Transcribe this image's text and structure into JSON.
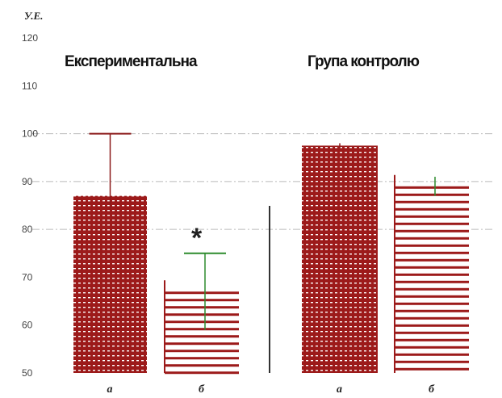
{
  "chart_data": {
    "type": "bar",
    "ylabel": "У.Е.",
    "ylim": [
      50,
      120
    ],
    "yticks": [
      "50",
      "60",
      "70",
      "80",
      "90",
      "100",
      "110",
      "120"
    ],
    "grid_ticks": [
      80,
      90,
      100
    ],
    "groups": [
      {
        "title": "Експериментальна",
        "bars": [
          {
            "category": "а",
            "value": 87,
            "error_high": 100,
            "error_low": 84,
            "error_color": "#8b1a1a",
            "pattern": "dense"
          },
          {
            "category": "б",
            "value": 67,
            "error_high": 75,
            "error_low": 59,
            "error_color": "#2e8b2e",
            "pattern": "sparse",
            "annotation": "*"
          }
        ]
      },
      {
        "title": "Група контролю",
        "bars": [
          {
            "category": "а",
            "value": 97.5,
            "error_high": 98,
            "error_low": 97,
            "error_color": "#8b1a1a",
            "pattern": "dense"
          },
          {
            "category": "б",
            "value": 89,
            "error_high": 91,
            "error_low": 87,
            "error_color": "#2e8b2e",
            "pattern": "sparse"
          }
        ]
      }
    ],
    "colors": {
      "bar": "#9c1a1a",
      "bar_light": "#ffffff",
      "grid": "#bbbbbb",
      "divider": "#333333"
    }
  }
}
